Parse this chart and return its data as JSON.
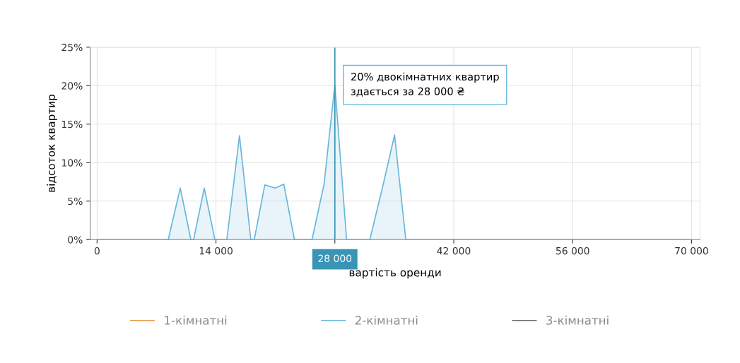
{
  "chart_data": {
    "type": "area",
    "xlabel": "вартість оренди",
    "ylabel": "відсоток квартир",
    "xlim": [
      -800,
      71000
    ],
    "ylim": [
      0,
      25
    ],
    "xticks": [
      {
        "value": 0,
        "label": "0"
      },
      {
        "value": 14000,
        "label": "14 000"
      },
      {
        "value": 28000,
        "label": null
      },
      {
        "value": 42000,
        "label": "42 000"
      },
      {
        "value": 56000,
        "label": "56 000"
      },
      {
        "value": 70000,
        "label": "70 000"
      }
    ],
    "yticks": [
      {
        "value": 0,
        "label": "0%"
      },
      {
        "value": 5,
        "label": "5%"
      },
      {
        "value": 10,
        "label": "10%"
      },
      {
        "value": 15,
        "label": "15%"
      },
      {
        "value": 20,
        "label": "20%"
      },
      {
        "value": 25,
        "label": "25%"
      }
    ],
    "grid": true,
    "legend": "bottom",
    "marker": "none",
    "line_style": "solid",
    "series": [
      {
        "name": "1-кімнатні",
        "color": "#e8974a"
      },
      {
        "name": "2-кімнатні",
        "color": "#67b7dc",
        "x": [
          0,
          7200,
          8380,
          9800,
          11040,
          11370,
          12620,
          13870,
          15280,
          16770,
          18100,
          18510,
          19750,
          20990,
          21990,
          23240,
          25310,
          26730,
          28000,
          29380,
          32120,
          33700,
          35030,
          36350,
          70000
        ],
        "values": [
          0,
          0,
          0,
          6.7,
          0,
          0,
          6.7,
          0,
          0,
          13.5,
          0,
          0,
          7.1,
          6.7,
          7.2,
          0,
          0,
          7.2,
          20.1,
          0,
          0,
          7.2,
          13.6,
          0,
          0
        ]
      },
      {
        "name": "3-кімнатні",
        "color": "#6b6b6b"
      }
    ],
    "ref_lines": [
      {
        "axis": "x",
        "value": 28000,
        "label": "28 000",
        "color": "#3a94b5"
      }
    ],
    "annotations": [
      {
        "text": "20% двокімнатних квартир\nздається за 28 000 ₴",
        "x": 28000,
        "y": 20.1
      }
    ]
  }
}
